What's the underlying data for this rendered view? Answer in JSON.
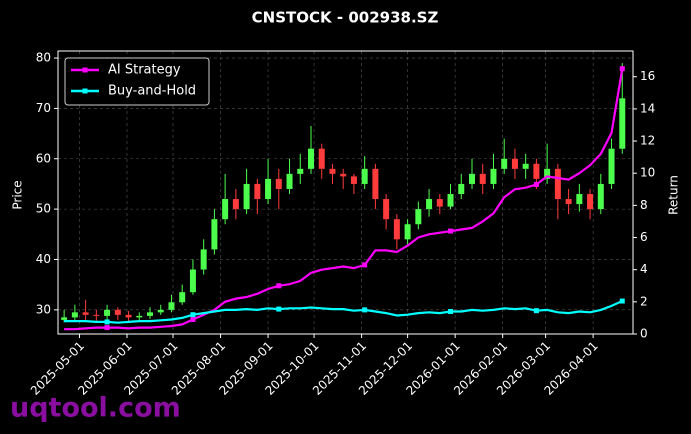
{
  "chart_data": {
    "type": "candlestick",
    "title": "CNSTOCK - 002938.SZ",
    "ylabel": "Price",
    "y2label": "Return",
    "watermark": "uqtool.com",
    "x": [
      "2025-04-21",
      "2025-04-28",
      "2025-05-05",
      "2025-05-12",
      "2025-05-19",
      "2025-05-26",
      "2025-06-02",
      "2025-06-09",
      "2025-06-16",
      "2025-06-23",
      "2025-06-30",
      "2025-07-07",
      "2025-07-14",
      "2025-07-21",
      "2025-07-28",
      "2025-08-04",
      "2025-08-11",
      "2025-08-18",
      "2025-08-25",
      "2025-09-01",
      "2025-09-08",
      "2025-09-15",
      "2025-09-22",
      "2025-09-29",
      "2025-10-06",
      "2025-10-13",
      "2025-10-20",
      "2025-10-27",
      "2025-11-03",
      "2025-11-10",
      "2025-11-17",
      "2025-11-24",
      "2025-12-01",
      "2025-12-08",
      "2025-12-15",
      "2025-12-22",
      "2025-12-29",
      "2026-01-05",
      "2026-01-12",
      "2026-01-19",
      "2026-01-26",
      "2026-02-02",
      "2026-02-09",
      "2026-02-16",
      "2026-02-23",
      "2026-03-02",
      "2026-03-09",
      "2026-03-16",
      "2026-03-23",
      "2026-03-30",
      "2026-04-06",
      "2026-04-13",
      "2026-04-20"
    ],
    "open": [
      28.0,
      28.5,
      29.5,
      29.0,
      28.8,
      30.0,
      29.0,
      28.5,
      28.8,
      29.5,
      30.0,
      31.5,
      33.5,
      38.0,
      42.0,
      48.0,
      52.0,
      50.0,
      55.0,
      52.0,
      56.0,
      54.0,
      57.0,
      58.0,
      62.0,
      58.0,
      57.0,
      56.5,
      55.0,
      58.0,
      52.0,
      48.0,
      44.0,
      47.0,
      50.0,
      52.0,
      50.5,
      53.0,
      55.0,
      57.0,
      55.0,
      58.0,
      60.0,
      58.0,
      59.0,
      56.0,
      58.0,
      52.0,
      51.0,
      53.0,
      50.0,
      55.0,
      62.0
    ],
    "high": [
      30.0,
      31.0,
      32.0,
      30.0,
      31.0,
      30.5,
      29.8,
      29.5,
      30.5,
      31.0,
      33.0,
      35.0,
      40.0,
      44.0,
      50.0,
      57.0,
      54.0,
      58.0,
      56.0,
      60.0,
      58.0,
      60.0,
      61.0,
      66.5,
      63.0,
      59.0,
      58.0,
      57.0,
      60.5,
      59.0,
      53.0,
      49.0,
      48.0,
      51.5,
      54.0,
      53.0,
      55.0,
      57.0,
      60.0,
      59.0,
      61.0,
      64.0,
      62.0,
      61.0,
      60.0,
      63.0,
      59.0,
      54.0,
      55.0,
      54.0,
      57.0,
      64.0,
      79.0
    ],
    "low": [
      27.5,
      28.0,
      28.0,
      27.8,
      28.0,
      28.0,
      27.5,
      27.8,
      28.2,
      29.0,
      29.5,
      31.0,
      33.0,
      37.0,
      41.0,
      47.0,
      48.0,
      49.0,
      49.0,
      51.0,
      50.0,
      53.0,
      55.0,
      57.0,
      56.0,
      55.0,
      54.0,
      53.0,
      54.0,
      50.0,
      46.0,
      42.0,
      43.0,
      46.0,
      48.5,
      49.0,
      50.0,
      52.0,
      54.0,
      53.0,
      54.0,
      57.0,
      56.0,
      56.0,
      54.0,
      55.0,
      48.0,
      49.0,
      49.5,
      48.0,
      49.0,
      54.0,
      61.0
    ],
    "close": [
      28.5,
      29.5,
      29.0,
      28.8,
      30.0,
      29.0,
      28.5,
      28.8,
      29.5,
      30.0,
      31.5,
      33.5,
      38.0,
      42.0,
      48.0,
      52.0,
      50.0,
      55.0,
      52.0,
      56.0,
      54.0,
      57.0,
      58.0,
      62.0,
      58.0,
      57.0,
      56.5,
      55.0,
      58.0,
      52.0,
      48.0,
      44.0,
      47.0,
      50.0,
      52.0,
      50.5,
      53.0,
      55.0,
      57.0,
      55.0,
      58.0,
      60.0,
      58.0,
      59.0,
      56.0,
      58.0,
      52.0,
      51.0,
      53.0,
      50.0,
      55.0,
      62.0,
      72.0
    ],
    "up_color": "#4dff4d",
    "down_color": "#ff3b3b",
    "series": [
      {
        "name": "AI Strategy",
        "color": "#ff00ff",
        "axis": "y2",
        "values": [
          0.3,
          0.3,
          0.35,
          0.4,
          0.4,
          0.4,
          0.35,
          0.4,
          0.4,
          0.45,
          0.5,
          0.6,
          0.9,
          1.2,
          1.5,
          2.0,
          2.2,
          2.3,
          2.5,
          2.8,
          3.0,
          3.1,
          3.3,
          3.8,
          4.0,
          4.1,
          4.2,
          4.1,
          4.3,
          5.2,
          5.2,
          5.1,
          5.5,
          6.0,
          6.2,
          6.3,
          6.4,
          6.5,
          6.6,
          7.0,
          7.5,
          8.5,
          9.0,
          9.1,
          9.3,
          9.8,
          9.7,
          9.6,
          10.0,
          10.5,
          11.2,
          12.5,
          16.5
        ]
      },
      {
        "name": "Buy-and-Hold",
        "color": "#00ffff",
        "axis": "y2",
        "values": [
          0.8,
          0.8,
          0.8,
          0.75,
          0.75,
          0.7,
          0.75,
          0.8,
          0.8,
          0.85,
          0.9,
          1.0,
          1.2,
          1.3,
          1.4,
          1.5,
          1.5,
          1.55,
          1.5,
          1.6,
          1.55,
          1.6,
          1.6,
          1.65,
          1.6,
          1.55,
          1.55,
          1.45,
          1.5,
          1.4,
          1.3,
          1.15,
          1.2,
          1.3,
          1.35,
          1.3,
          1.4,
          1.4,
          1.5,
          1.45,
          1.5,
          1.6,
          1.55,
          1.6,
          1.45,
          1.5,
          1.35,
          1.3,
          1.4,
          1.35,
          1.5,
          1.75,
          2.05
        ]
      }
    ],
    "xlim": [
      "2025-04-17",
      "2026-04-27"
    ],
    "xticks": [
      "2025-05-01",
      "2025-06-01",
      "2025-07-01",
      "2025-08-01",
      "2025-09-01",
      "2025-10-01",
      "2025-11-01",
      "2025-12-01",
      "2026-01-01",
      "2026-02-01",
      "2026-03-01",
      "2026-04-01"
    ],
    "ylim": [
      25.2,
      81.4
    ],
    "yticks": [
      30,
      40,
      50,
      60,
      70,
      80
    ],
    "y2lim": [
      0,
      17.6
    ],
    "y2ticks": [
      0,
      2,
      4,
      6,
      8,
      10,
      12,
      14,
      16
    ],
    "grid": true,
    "legend": "upper left"
  }
}
